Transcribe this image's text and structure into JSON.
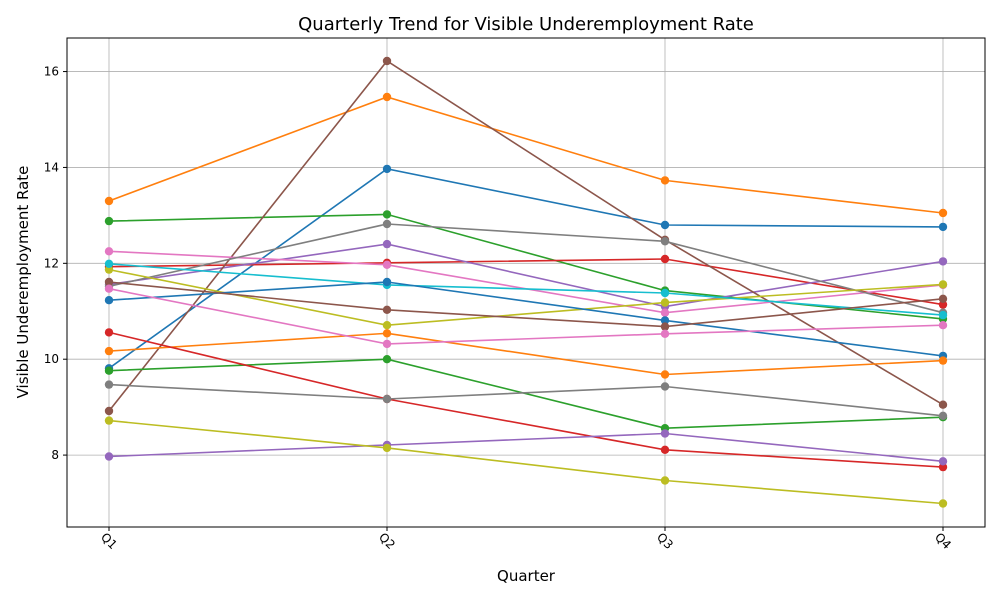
{
  "chart_data": {
    "type": "line",
    "title": "Quarterly Trend for Visible Underemployment Rate",
    "xlabel": "Quarter",
    "ylabel": "Visible Underemployment Rate",
    "categories": [
      "Q1",
      "Q2",
      "Q3",
      "Q4"
    ],
    "ylim": [
      6.5,
      16.7
    ],
    "yticks": [
      8,
      10,
      12,
      14,
      16
    ],
    "grid": true,
    "legend": "none",
    "series": [
      {
        "color": "#1f77b4",
        "values": [
          9.81,
          13.97,
          12.8,
          12.76
        ]
      },
      {
        "color": "#ff7f0e",
        "values": [
          13.3,
          15.47,
          13.73,
          13.05
        ]
      },
      {
        "color": "#2ca02c",
        "values": [
          12.88,
          13.02,
          11.43,
          10.84
        ]
      },
      {
        "color": "#d62728",
        "values": [
          11.93,
          12.01,
          12.09,
          11.14
        ]
      },
      {
        "color": "#9467bd",
        "values": [
          11.56,
          12.4,
          11.1,
          12.04
        ]
      },
      {
        "color": "#8c564b",
        "values": [
          8.92,
          16.22,
          12.49,
          9.05
        ]
      },
      {
        "color": "#e377c2",
        "values": [
          12.25,
          11.97,
          10.97,
          11.55
        ]
      },
      {
        "color": "#7f7f7f",
        "values": [
          11.52,
          12.82,
          12.46,
          10.97
        ]
      },
      {
        "color": "#bcbd22",
        "values": [
          11.87,
          10.71,
          11.18,
          11.56
        ]
      },
      {
        "color": "#17becf",
        "values": [
          11.99,
          11.55,
          11.38,
          10.92
        ]
      },
      {
        "color": "#1f77b4",
        "values": [
          11.23,
          11.61,
          10.81,
          10.07
        ]
      },
      {
        "color": "#ff7f0e",
        "values": [
          10.17,
          10.54,
          9.68,
          9.97
        ]
      },
      {
        "color": "#2ca02c",
        "values": [
          9.76,
          10.0,
          8.56,
          8.79
        ]
      },
      {
        "color": "#d62728",
        "values": [
          10.56,
          9.17,
          8.11,
          7.75
        ]
      },
      {
        "color": "#9467bd",
        "values": [
          7.97,
          8.21,
          8.45,
          7.87
        ]
      },
      {
        "color": "#8c564b",
        "values": [
          11.61,
          11.03,
          10.68,
          11.26
        ]
      },
      {
        "color": "#e377c2",
        "values": [
          11.47,
          10.32,
          10.53,
          10.71
        ]
      },
      {
        "color": "#7f7f7f",
        "values": [
          9.47,
          9.17,
          9.43,
          8.82
        ]
      },
      {
        "color": "#bcbd22",
        "values": [
          8.72,
          8.15,
          7.47,
          6.99
        ]
      }
    ]
  }
}
